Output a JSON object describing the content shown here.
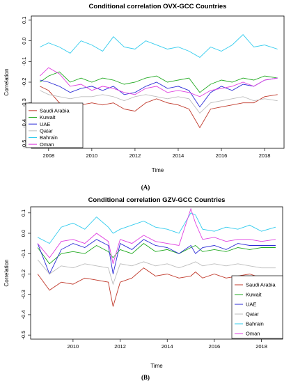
{
  "colors": {
    "Saudi Arabia": "#c0392b",
    "Kuwait": "#22aa22",
    "UAE": "#2b2bd6",
    "Qatar": "#bdbdbd",
    "Bahrain": "#33ccee",
    "Oman": "#e040e0"
  },
  "chart_data": [
    {
      "type": "line",
      "caption": "(A)",
      "title": "Conditional correlation OVX-GCC Countries",
      "xlabel": "Time",
      "ylabel": "Correlation",
      "xlim": [
        2007.2,
        2018.9
      ],
      "ylim": [
        -0.52,
        0.12
      ],
      "xticks": [
        2008,
        2010,
        2012,
        2014,
        2016,
        2018
      ],
      "yticks": [
        0.1,
        0.0,
        -0.1,
        -0.2,
        -0.3,
        -0.4,
        -0.5
      ],
      "legend": "bottom-left",
      "x": [
        2007.6,
        2008.0,
        2008.5,
        2009.0,
        2009.5,
        2010.0,
        2010.5,
        2011.0,
        2011.5,
        2012.0,
        2012.5,
        2013.0,
        2013.5,
        2014.0,
        2014.5,
        2015.0,
        2015.5,
        2016.0,
        2016.5,
        2017.0,
        2017.5,
        2018.0,
        2018.6
      ],
      "series": [
        {
          "name": "Saudi Arabia",
          "values": [
            -0.22,
            -0.24,
            -0.3,
            -0.32,
            -0.31,
            -0.3,
            -0.31,
            -0.3,
            -0.33,
            -0.34,
            -0.3,
            -0.28,
            -0.3,
            -0.31,
            -0.33,
            -0.42,
            -0.33,
            -0.32,
            -0.31,
            -0.3,
            -0.3,
            -0.27,
            -0.26
          ]
        },
        {
          "name": "Kuwait",
          "values": [
            -0.2,
            -0.17,
            -0.15,
            -0.2,
            -0.18,
            -0.2,
            -0.18,
            -0.19,
            -0.21,
            -0.2,
            -0.18,
            -0.17,
            -0.2,
            -0.19,
            -0.18,
            -0.25,
            -0.21,
            -0.19,
            -0.2,
            -0.18,
            -0.19,
            -0.17,
            -0.18
          ]
        },
        {
          "name": "UAE",
          "values": [
            -0.19,
            -0.2,
            -0.22,
            -0.25,
            -0.23,
            -0.22,
            -0.24,
            -0.22,
            -0.26,
            -0.25,
            -0.22,
            -0.2,
            -0.23,
            -0.22,
            -0.24,
            -0.32,
            -0.25,
            -0.22,
            -0.24,
            -0.21,
            -0.22,
            -0.19,
            -0.18
          ]
        },
        {
          "name": "Qatar",
          "values": [
            -0.24,
            -0.26,
            -0.27,
            -0.28,
            -0.27,
            -0.27,
            -0.26,
            -0.27,
            -0.29,
            -0.27,
            -0.26,
            -0.27,
            -0.28,
            -0.27,
            -0.28,
            -0.35,
            -0.3,
            -0.29,
            -0.28,
            -0.27,
            -0.29,
            -0.28,
            -0.29
          ]
        },
        {
          "name": "Bahrain",
          "values": [
            -0.03,
            -0.01,
            -0.03,
            -0.06,
            0.0,
            -0.02,
            -0.05,
            0.02,
            -0.03,
            -0.04,
            0.0,
            -0.02,
            -0.04,
            -0.03,
            -0.05,
            -0.08,
            -0.03,
            -0.05,
            -0.02,
            0.03,
            -0.03,
            -0.02,
            -0.04
          ]
        },
        {
          "name": "Oman",
          "values": [
            -0.17,
            -0.13,
            -0.16,
            -0.22,
            -0.21,
            -0.24,
            -0.22,
            -0.23,
            -0.25,
            -0.26,
            -0.23,
            -0.22,
            -0.25,
            -0.24,
            -0.25,
            -0.27,
            -0.24,
            -0.23,
            -0.22,
            -0.2,
            -0.22,
            -0.19,
            -0.18
          ]
        }
      ]
    },
    {
      "type": "line",
      "caption": "(B)",
      "title": "Conditional correlation GZV-GCC Countries",
      "xlabel": "Time",
      "ylabel": "Correlation",
      "xlim": [
        2008.2,
        2018.9
      ],
      "ylim": [
        -0.52,
        0.13
      ],
      "xticks": [
        2010,
        2012,
        2014,
        2016,
        2018
      ],
      "yticks": [
        0.1,
        0.0,
        -0.1,
        -0.2,
        -0.3,
        -0.4,
        -0.5
      ],
      "legend": "bottom-right",
      "x": [
        2008.5,
        2009.0,
        2009.5,
        2010.0,
        2010.5,
        2011.0,
        2011.5,
        2011.7,
        2012.0,
        2012.5,
        2013.0,
        2013.5,
        2014.0,
        2014.5,
        2015.0,
        2015.2,
        2015.5,
        2016.0,
        2016.5,
        2017.0,
        2017.5,
        2018.0,
        2018.6
      ],
      "series": [
        {
          "name": "Saudi Arabia",
          "values": [
            -0.2,
            -0.28,
            -0.24,
            -0.25,
            -0.22,
            -0.23,
            -0.24,
            -0.36,
            -0.24,
            -0.22,
            -0.17,
            -0.21,
            -0.2,
            -0.22,
            -0.21,
            -0.19,
            -0.22,
            -0.2,
            -0.22,
            -0.21,
            -0.2,
            -0.22,
            -0.21
          ]
        },
        {
          "name": "Kuwait",
          "values": [
            -0.07,
            -0.15,
            -0.1,
            -0.09,
            -0.1,
            -0.06,
            -0.09,
            -0.12,
            -0.08,
            -0.1,
            -0.05,
            -0.09,
            -0.08,
            -0.1,
            -0.07,
            -0.06,
            -0.09,
            -0.08,
            -0.09,
            -0.07,
            -0.08,
            -0.07,
            -0.07
          ]
        },
        {
          "name": "UAE",
          "values": [
            -0.05,
            -0.2,
            -0.08,
            -0.05,
            -0.07,
            -0.03,
            -0.06,
            -0.2,
            -0.05,
            -0.08,
            -0.03,
            -0.06,
            -0.07,
            -0.1,
            -0.06,
            -0.1,
            -0.07,
            -0.06,
            -0.08,
            -0.05,
            -0.06,
            -0.06,
            -0.06
          ]
        },
        {
          "name": "Qatar",
          "values": [
            -0.13,
            -0.2,
            -0.16,
            -0.17,
            -0.15,
            -0.16,
            -0.17,
            -0.25,
            -0.15,
            -0.16,
            -0.14,
            -0.16,
            -0.15,
            -0.17,
            -0.15,
            -0.14,
            -0.16,
            -0.15,
            -0.16,
            -0.15,
            -0.16,
            -0.17,
            -0.17
          ]
        },
        {
          "name": "Bahrain",
          "values": [
            -0.02,
            -0.05,
            0.03,
            0.05,
            0.02,
            0.08,
            0.03,
            0.0,
            0.02,
            0.04,
            0.06,
            0.03,
            0.02,
            0.0,
            0.1,
            0.09,
            0.02,
            0.01,
            0.03,
            0.02,
            0.04,
            0.01,
            0.03
          ]
        },
        {
          "name": "Oman",
          "values": [
            -0.05,
            -0.12,
            -0.04,
            -0.03,
            -0.05,
            0.0,
            -0.04,
            -0.15,
            -0.03,
            -0.05,
            -0.01,
            -0.04,
            -0.05,
            -0.06,
            0.12,
            0.05,
            -0.03,
            -0.02,
            -0.04,
            -0.03,
            -0.03,
            -0.04,
            -0.03
          ]
        }
      ]
    }
  ]
}
